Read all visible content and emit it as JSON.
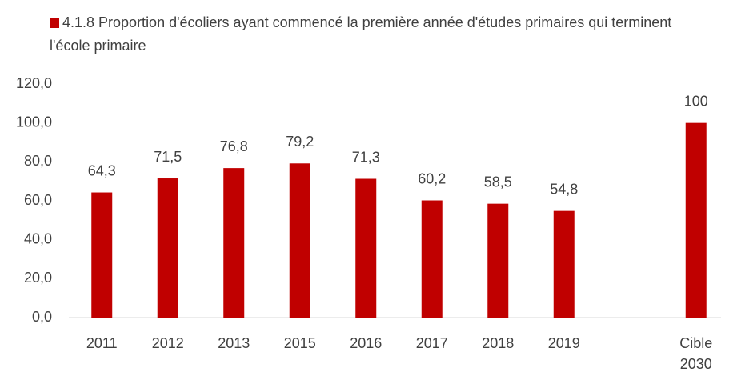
{
  "chart_data": {
    "type": "bar",
    "series": [
      {
        "name": "4.1.8 Proportion d'écoliers ayant commencé la première année d'études primaires qui terminent l'école primaire",
        "color": "#c00000",
        "values": [
          64.3,
          71.5,
          76.8,
          79.2,
          71.3,
          60.2,
          58.5,
          54.8,
          null,
          100
        ],
        "value_labels": [
          "64,3",
          "71,5",
          "76,8",
          "79,2",
          "71,3",
          "60,2",
          "58,5",
          "54,8",
          null,
          "100"
        ]
      }
    ],
    "categories": [
      "2011",
      "2012",
      "2013",
      "2015",
      "2016",
      "2017",
      "2018",
      "2019",
      null,
      "Cible 2030"
    ],
    "ylim": [
      0,
      120
    ],
    "yticks": [
      {
        "value": 0,
        "label": "0,0"
      },
      {
        "value": 20,
        "label": "20,0"
      },
      {
        "value": 40,
        "label": "40,0"
      },
      {
        "value": 60,
        "label": "60,0"
      },
      {
        "value": 80,
        "label": "80,0"
      },
      {
        "value": 100,
        "label": "100,0"
      },
      {
        "value": 120,
        "label": "120,0"
      }
    ],
    "grid": false,
    "legend": "top"
  }
}
